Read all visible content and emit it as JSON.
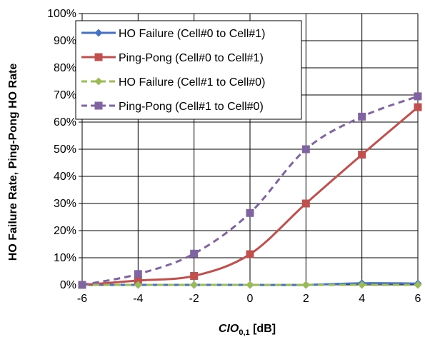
{
  "chart_data": {
    "type": "line",
    "xlabel": {
      "main": "CIO",
      "sub": "0,1",
      "rest": " [dB]"
    },
    "ylabel": "HO Failure Rate, Ping-Pong HO Rate",
    "xlim": [
      -6,
      6
    ],
    "ylim": [
      0,
      100
    ],
    "x_ticks": [
      -6,
      -4,
      -2,
      0,
      2,
      4,
      6
    ],
    "y_ticks": [
      0,
      10,
      20,
      30,
      40,
      50,
      60,
      70,
      80,
      90,
      100
    ],
    "x_tick_labels": [
      "-6",
      "-4",
      "-2",
      "0",
      "2",
      "4",
      "6"
    ],
    "y_tick_labels": [
      "0%",
      "10%",
      "20%",
      "30%",
      "40%",
      "50%",
      "60%",
      "70%",
      "80%",
      "90%",
      "100%"
    ],
    "grid": true,
    "legend_position": "top-left",
    "x": [
      -6,
      -4,
      -2,
      0,
      2,
      4,
      6
    ],
    "series": [
      {
        "name": "HO Failure (Cell#0 to Cell#1)",
        "values": [
          0,
          0,
          0,
          0,
          0,
          0.6,
          0.5
        ],
        "color": "#4472C4",
        "marker": "diamond",
        "dash": "solid"
      },
      {
        "name": "Ping-Pong (Cell#0 to Cell#1)",
        "values": [
          0,
          1.6,
          3.3,
          11.3,
          30,
          48,
          65.5
        ],
        "color": "#C0504D",
        "marker": "square",
        "dash": "solid"
      },
      {
        "name": "HO Failure (Cell#1 to Cell#0)",
        "values": [
          0,
          0,
          0,
          0,
          0,
          0,
          0
        ],
        "color": "#9BBB59",
        "marker": "diamond",
        "dash": "dashed"
      },
      {
        "name": "Ping-Pong (Cell#1 to Cell#0)",
        "values": [
          0,
          4,
          11.5,
          26.5,
          50,
          62,
          69.5
        ],
        "color": "#8064A2",
        "marker": "square",
        "dash": "dashed"
      }
    ]
  }
}
